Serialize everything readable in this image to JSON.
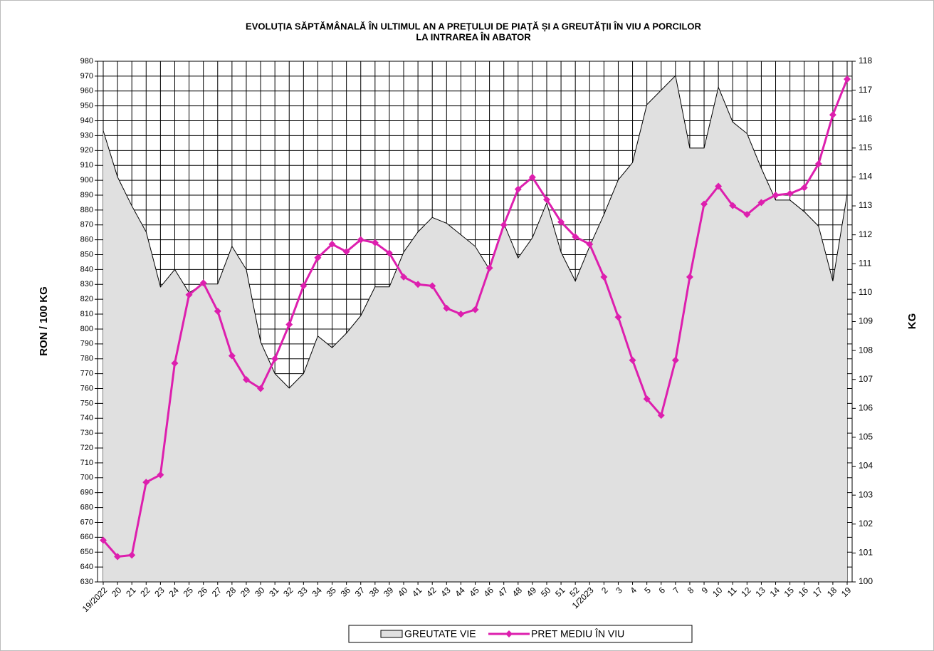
{
  "chart_data": {
    "type": "line",
    "title": "EVOLUȚIA SĂPTĂMÂNALĂ  ÎN ULTIMUL AN A PREȚULUI  DE PIAȚĂ ȘI A GREUTĂȚII  ÎN VIU A PORCILOR",
    "subtitle": "LA INTRAREA ÎN ABATOR",
    "y_label": "RON / 100 KG",
    "y2_label": "KG",
    "categories": [
      "19/2022",
      "20",
      "21",
      "22",
      "23",
      "24",
      "25",
      "26",
      "27",
      "28",
      "29",
      "30",
      "31",
      "32",
      "33",
      "34",
      "35",
      "36",
      "37",
      "38",
      "39",
      "40",
      "41",
      "42",
      "43",
      "44",
      "45",
      "46",
      "47",
      "48",
      "49",
      "50",
      "51",
      "52",
      "1/2023",
      "2",
      "3",
      "4",
      "5",
      "6",
      "7",
      "8",
      "9",
      "10",
      "11",
      "12",
      "13",
      "14",
      "15",
      "16",
      "17",
      "18",
      "19"
    ],
    "series": [
      {
        "name": "GREUTATE VIE",
        "type": "area",
        "axis": "y2",
        "color": "#e0e0e0",
        "values": [
          115.6,
          114.0,
          113.0,
          112.1,
          110.2,
          110.8,
          110.0,
          110.3,
          110.3,
          111.6,
          110.8,
          108.3,
          107.2,
          106.7,
          107.2,
          108.5,
          108.1,
          108.6,
          109.2,
          110.2,
          110.2,
          111.4,
          112.1,
          112.6,
          112.4,
          112.0,
          111.6,
          110.8,
          112.4,
          111.2,
          111.9,
          113.1,
          111.4,
          110.4,
          111.6,
          112.7,
          113.9,
          114.5,
          116.5,
          117.0,
          117.5,
          115.0,
          115.0,
          117.1,
          115.9,
          115.5,
          114.3,
          113.2,
          113.2,
          112.8,
          112.3,
          110.4,
          113.4
        ]
      },
      {
        "name": "PRET MEDIU ÎN VIU",
        "type": "line",
        "color": "#dd1fae",
        "values": [
          658,
          647,
          648,
          697,
          702,
          777,
          823,
          831,
          812,
          782,
          766,
          760,
          780,
          803,
          829,
          848,
          857,
          852,
          860,
          858,
          851,
          835,
          830,
          829,
          814,
          810,
          813,
          841,
          870,
          894,
          902,
          887,
          872,
          862,
          857,
          835,
          808,
          779,
          753,
          742,
          779,
          835,
          884,
          896,
          883,
          877,
          885,
          890,
          891,
          895,
          911,
          944,
          968
        ]
      }
    ],
    "ylim": [
      630,
      980
    ],
    "yticks": [
      630,
      640,
      650,
      660,
      670,
      680,
      690,
      700,
      710,
      720,
      730,
      740,
      750,
      760,
      770,
      780,
      790,
      800,
      810,
      820,
      830,
      840,
      850,
      860,
      870,
      880,
      890,
      900,
      910,
      920,
      930,
      940,
      950,
      960,
      970,
      980
    ],
    "y2lim": [
      100,
      118
    ],
    "y2ticks": [
      100,
      101,
      102,
      103,
      104,
      105,
      106,
      107,
      108,
      109,
      110,
      111,
      112,
      113,
      114,
      115,
      116,
      117,
      118
    ],
    "grid": true,
    "legend": "bottom"
  }
}
